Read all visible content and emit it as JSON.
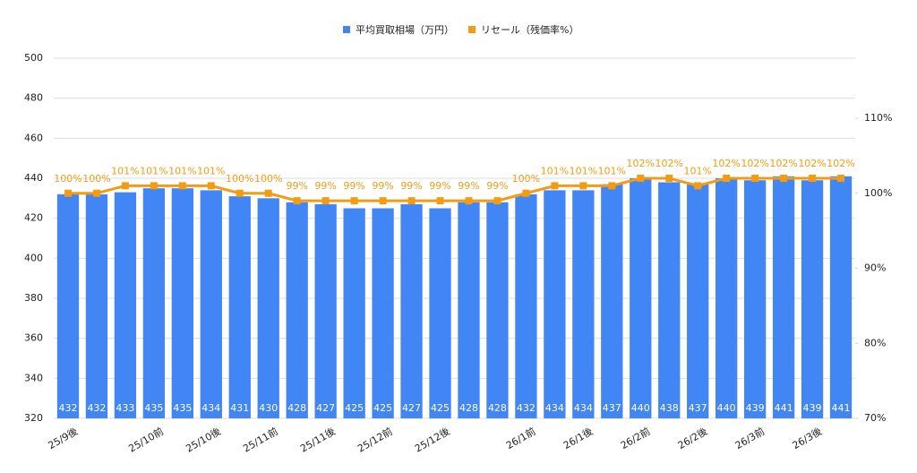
{
  "chart_data": {
    "type": "bar_line",
    "categories": [
      "25/9後",
      null,
      null,
      "25/10前",
      null,
      "25/10後",
      null,
      "25/11前",
      null,
      "25/11後",
      null,
      "25/12前",
      null,
      "25/12後",
      null,
      null,
      "26/1前",
      null,
      "26/1後",
      null,
      "26/2前",
      null,
      "26/2後",
      null,
      "26/3前",
      null,
      "26/3後",
      null
    ],
    "series": [
      {
        "name": "平均買取相場（万円）",
        "type": "bar",
        "color": "#4285f4",
        "values": [
          432,
          432,
          433,
          435,
          435,
          434,
          431,
          430,
          428,
          427,
          425,
          425,
          427,
          425,
          428,
          428,
          432,
          434,
          434,
          437,
          440,
          438,
          437,
          440,
          439,
          441,
          439,
          441
        ]
      },
      {
        "name": "リセール（残価率%）",
        "type": "line",
        "axis": "y2",
        "color": "#f39c12",
        "values": [
          100,
          100,
          101,
          101,
          101,
          101,
          100,
          100,
          99,
          99,
          99,
          99,
          99,
          99,
          99,
          99,
          100,
          101,
          101,
          101,
          102,
          102,
          101,
          102,
          102,
          102,
          102,
          102
        ],
        "value_labels": [
          "100%",
          "100%",
          "101%",
          "101%",
          "101%",
          "101%",
          "100%",
          "100%",
          "99%",
          "99%",
          "99%",
          "99%",
          "99%",
          "99%",
          "99%",
          "99%",
          "100%",
          "101%",
          "101%",
          "101%",
          "102%",
          "102%",
          "101%",
          "102%",
          "102%",
          "102%",
          "102%",
          "102%"
        ]
      }
    ],
    "ylim": [
      320,
      500
    ],
    "yticks": [
      320,
      340,
      360,
      380,
      400,
      420,
      440,
      460,
      480,
      500
    ],
    "y2lim": [
      70,
      118
    ],
    "y2ticks": [
      {
        "value": 70,
        "label": "70%"
      },
      {
        "value": 80,
        "label": "80%"
      },
      {
        "value": 90,
        "label": "90%"
      },
      {
        "value": 100,
        "label": "100%"
      },
      {
        "value": 110,
        "label": "110%"
      }
    ],
    "grid": true,
    "legend": "top"
  }
}
